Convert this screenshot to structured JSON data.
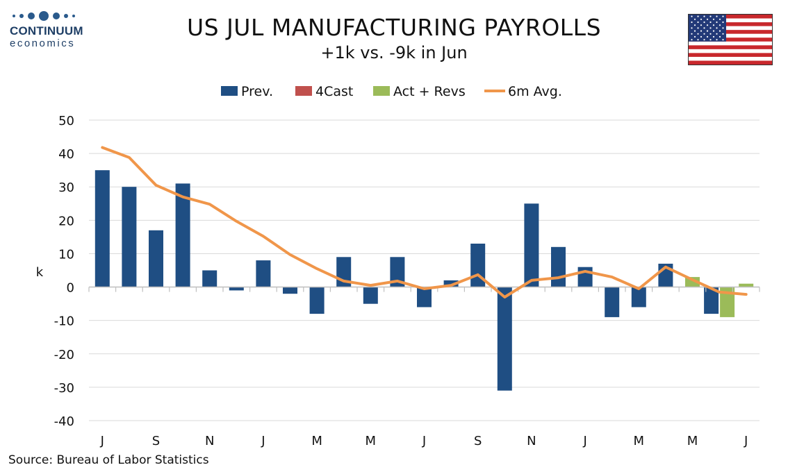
{
  "logo": {
    "brand": "CONTINUUM",
    "sub": "economics"
  },
  "title": "US JUL MANUFACTURING PAYROLLS",
  "subtitle": "+1k vs. -9k in Jun",
  "source": "Source: Bureau of Labor Statistics",
  "colors": {
    "prev": "#1f4e83",
    "forecast": "#c0504d",
    "actual": "#9bbb59",
    "avg": "#f0964a",
    "grid": "#d9d9d9"
  },
  "chart_data": {
    "type": "bar",
    "ylabel": "k",
    "ylim": [
      -40,
      50
    ],
    "yticks": [
      -40,
      -30,
      -20,
      -10,
      0,
      10,
      20,
      30,
      40,
      50
    ],
    "grid": true,
    "legend_position": "top",
    "x_tick_labels": [
      "J",
      "S",
      "N",
      "J",
      "M",
      "M",
      "J",
      "S",
      "N",
      "J",
      "M",
      "M",
      "J"
    ],
    "categories": [
      "2022-07",
      "2022-08",
      "2022-09",
      "2022-10",
      "2022-11",
      "2022-12",
      "2023-01",
      "2023-02",
      "2023-03",
      "2023-04",
      "2023-05",
      "2023-06",
      "2023-07",
      "2023-08",
      "2023-09",
      "2023-10",
      "2023-11",
      "2023-12",
      "2024-01",
      "2024-02",
      "2024-03",
      "2024-04",
      "2024-05",
      "2024-06",
      "2024-07"
    ],
    "series": [
      {
        "name": "Prev.",
        "type": "bar",
        "values": [
          35,
          30,
          17,
          31,
          5,
          -1,
          8,
          -2,
          -8,
          9,
          -5,
          9,
          -6,
          2,
          13,
          -31,
          25,
          12,
          6,
          -9,
          -6,
          7,
          null,
          -8,
          null
        ]
      },
      {
        "name": "4Cast",
        "type": "bar",
        "values": [
          null,
          null,
          null,
          null,
          null,
          null,
          null,
          null,
          null,
          null,
          null,
          null,
          null,
          null,
          null,
          null,
          null,
          null,
          null,
          null,
          null,
          null,
          null,
          null,
          null
        ]
      },
      {
        "name": "Act + Revs",
        "type": "bar",
        "values": [
          null,
          null,
          null,
          null,
          null,
          null,
          null,
          null,
          null,
          null,
          null,
          null,
          null,
          null,
          null,
          null,
          null,
          null,
          null,
          null,
          null,
          null,
          3,
          -9,
          1
        ]
      },
      {
        "name": "6m Avg.",
        "type": "line",
        "values": [
          41.8,
          38.8,
          30.5,
          27,
          24.8,
          19.7,
          15.2,
          9.7,
          5.5,
          1.8,
          0.5,
          1.8,
          -0.5,
          0.5,
          3.7,
          -3,
          2,
          2.8,
          4.7,
          3,
          -0.5,
          6,
          2.2,
          -1.5,
          -2.2
        ]
      }
    ]
  }
}
